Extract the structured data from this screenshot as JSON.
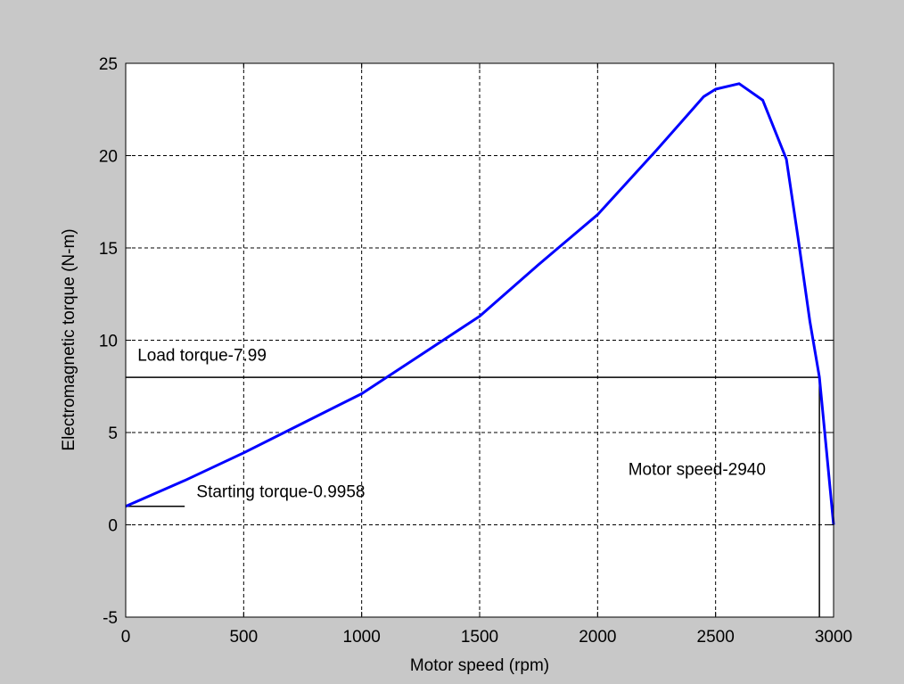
{
  "chart_data": {
    "type": "line",
    "title": "",
    "xlabel": "Motor speed (rpm)",
    "ylabel": "Electromagnetic torque (N-m)",
    "xlim": [
      0,
      3000
    ],
    "ylim": [
      -5,
      25
    ],
    "xticks": [
      0,
      500,
      1000,
      1500,
      2000,
      2500,
      3000
    ],
    "yticks": [
      -5,
      0,
      5,
      10,
      15,
      20,
      25
    ],
    "grid": true,
    "series": [
      {
        "color": "#0000ff",
        "x": [
          0,
          250,
          500,
          750,
          1000,
          1250,
          1500,
          1750,
          2000,
          2250,
          2450,
          2500,
          2600,
          2700,
          2800,
          2850,
          2900,
          2940,
          2970,
          3000
        ],
        "y": [
          1.0,
          2.4,
          3.9,
          5.5,
          7.1,
          9.2,
          11.3,
          14.1,
          16.8,
          20.3,
          23.2,
          23.6,
          23.9,
          23.0,
          19.8,
          15.5,
          11.0,
          8.0,
          4.0,
          0.0
        ]
      }
    ],
    "reference_lines": [
      {
        "orientation": "horizontal",
        "value": 7.99,
        "color": "#000000"
      },
      {
        "orientation": "vertical",
        "value": 2940,
        "color": "#000000"
      },
      {
        "orientation": "horizontal-segment",
        "value": 1.0,
        "x_range": [
          0,
          250
        ],
        "color": "#000000"
      }
    ],
    "annotations": [
      {
        "text": "Load torque-7.99",
        "x": 50,
        "y": 8.9
      },
      {
        "text": "Starting torque-0.9958",
        "x": 300,
        "y": 1.5
      },
      {
        "text": "Motor speed-2940",
        "x": 2130,
        "y": 2.7
      }
    ]
  }
}
